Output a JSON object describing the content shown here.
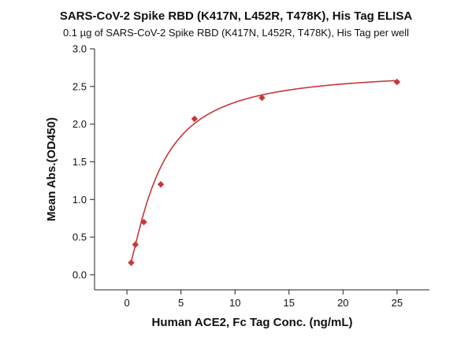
{
  "chart_data": {
    "type": "scatter",
    "title": "SARS-CoV-2 Spike RBD (K417N, L452R, T478K), His Tag ELISA",
    "subtitle": "0.1 µg of SARS-CoV-2 Spike RBD (K417N, L452R, T478K), His Tag per well",
    "xlabel": "Human ACE2, Fc Tag Conc. (ng/mL)",
    "ylabel": "Mean Abs.(OD450)",
    "xlim": [
      -3,
      28
    ],
    "ylim": [
      -0.2,
      3.0
    ],
    "xticks": [
      0,
      5,
      10,
      15,
      20,
      25
    ],
    "xtick_labels": [
      "0",
      "5",
      "10",
      "15",
      "20",
      "25"
    ],
    "yticks": [
      0.0,
      0.5,
      1.0,
      1.5,
      2.0,
      2.5,
      3.0
    ],
    "ytick_labels": [
      "0.0",
      "0.5",
      "1.0",
      "1.5",
      "2.0",
      "2.5",
      "3.0"
    ],
    "grid": false,
    "series": [
      {
        "points": [
          {
            "x": 0.39,
            "y": 0.16
          },
          {
            "x": 0.78,
            "y": 0.4
          },
          {
            "x": 1.56,
            "y": 0.7
          },
          {
            "x": 3.13,
            "y": 1.2
          },
          {
            "x": 6.25,
            "y": 2.07
          },
          {
            "x": 12.5,
            "y": 2.35
          },
          {
            "x": 25.0,
            "y": 2.56
          }
        ],
        "marker": "diamond",
        "color": "#c8373a",
        "fit": {
          "type": "4PL",
          "color": "#c8373a",
          "x_start": 0.39,
          "x_end": 25.0
        }
      }
    ]
  }
}
